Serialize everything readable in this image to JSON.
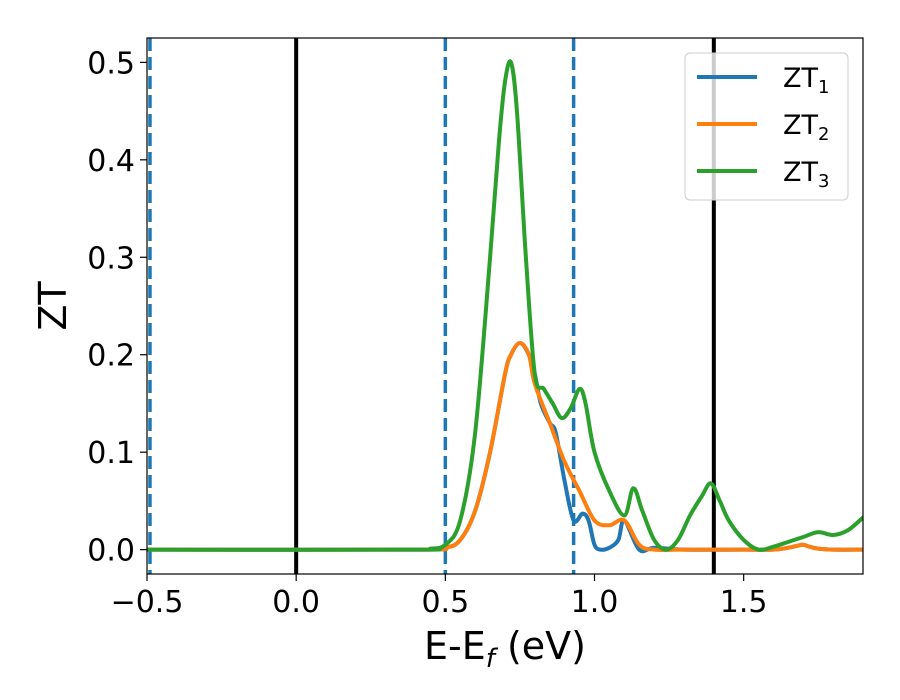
{
  "chart_data": {
    "type": "line",
    "xlabel": "E-E",
    "xlabel_sub": "f",
    "xlabel_unit": " (eV)",
    "ylabel": "ZT",
    "xlim": [
      -0.5,
      1.9
    ],
    "ylim": [
      -0.025,
      0.525
    ],
    "xticks": [
      -0.5,
      0.0,
      0.5,
      1.0,
      1.5
    ],
    "xtick_labels": [
      "−0.5",
      "0.0",
      "0.5",
      "1.0",
      "1.5"
    ],
    "yticks": [
      0.0,
      0.1,
      0.2,
      0.3,
      0.4,
      0.5
    ],
    "ytick_labels": [
      "0.0",
      "0.1",
      "0.2",
      "0.3",
      "0.4",
      "0.5"
    ],
    "grid": false,
    "legend_position": "top-right",
    "vertical_lines": [
      {
        "x": -0.49,
        "style": "dashed",
        "color": "#1f77b4"
      },
      {
        "x": 0.0,
        "style": "solid",
        "color": "#000000"
      },
      {
        "x": 0.5,
        "style": "dashed",
        "color": "#1f77b4"
      },
      {
        "x": 0.93,
        "style": "dashed",
        "color": "#1f77b4"
      },
      {
        "x": 1.4,
        "style": "solid",
        "color": "#000000"
      }
    ],
    "series": [
      {
        "name": "ZT",
        "sub": "1",
        "color": "#1f77b4",
        "x": [
          -0.5,
          0.4,
          0.5,
          0.55,
          0.6,
          0.65,
          0.7,
          0.72,
          0.75,
          0.78,
          0.8,
          0.82,
          0.85,
          0.87,
          0.9,
          0.93,
          0.96,
          0.98,
          1.0,
          1.02,
          1.05,
          1.08,
          1.1,
          1.15,
          1.2,
          1.3,
          1.5,
          1.6,
          1.65,
          1.68,
          1.7,
          1.72,
          1.75,
          1.8,
          1.9
        ],
        "y": [
          0.0,
          0.0,
          0.002,
          0.01,
          0.04,
          0.1,
          0.18,
          0.2,
          0.212,
          0.2,
          0.18,
          0.15,
          0.13,
          0.12,
          0.07,
          0.03,
          0.037,
          0.03,
          0.005,
          0.0,
          0.002,
          0.01,
          0.03,
          0.0,
          0.002,
          0.0,
          0.0,
          0.0,
          0.002,
          0.004,
          0.005,
          0.003,
          0.001,
          0.0,
          0.0
        ]
      },
      {
        "name": "ZT",
        "sub": "2",
        "color": "#ff7f0e",
        "x": [
          -0.5,
          0.4,
          0.5,
          0.55,
          0.6,
          0.65,
          0.7,
          0.72,
          0.75,
          0.78,
          0.8,
          0.85,
          0.9,
          0.95,
          1.0,
          1.05,
          1.1,
          1.15,
          1.2,
          1.3,
          1.5,
          1.6,
          1.65,
          1.68,
          1.7,
          1.72,
          1.75,
          1.8,
          1.9
        ],
        "y": [
          0.0,
          0.0,
          0.002,
          0.01,
          0.04,
          0.1,
          0.18,
          0.2,
          0.212,
          0.2,
          0.17,
          0.13,
          0.09,
          0.06,
          0.03,
          0.025,
          0.03,
          0.005,
          0.0,
          0.0,
          0.0,
          0.0,
          0.002,
          0.004,
          0.005,
          0.003,
          0.001,
          0.0,
          0.0
        ]
      },
      {
        "name": "ZT",
        "sub": "3",
        "color": "#2ca02c",
        "x": [
          -0.5,
          0.4,
          0.45,
          0.5,
          0.55,
          0.6,
          0.65,
          0.68,
          0.7,
          0.72,
          0.74,
          0.77,
          0.8,
          0.83,
          0.86,
          0.89,
          0.92,
          0.95,
          0.97,
          1.0,
          1.05,
          1.1,
          1.13,
          1.16,
          1.2,
          1.24,
          1.28,
          1.32,
          1.36,
          1.39,
          1.42,
          1.45,
          1.5,
          1.55,
          1.6,
          1.65,
          1.7,
          1.75,
          1.8,
          1.85,
          1.9
        ],
        "y": [
          0.0,
          0.0,
          0.001,
          0.005,
          0.03,
          0.12,
          0.3,
          0.42,
          0.48,
          0.5,
          0.45,
          0.3,
          0.18,
          0.165,
          0.15,
          0.135,
          0.145,
          0.165,
          0.15,
          0.1,
          0.06,
          0.035,
          0.063,
          0.04,
          0.01,
          0.0,
          0.01,
          0.035,
          0.055,
          0.068,
          0.05,
          0.03,
          0.01,
          0.0,
          0.003,
          0.008,
          0.013,
          0.018,
          0.015,
          0.02,
          0.033
        ]
      }
    ]
  }
}
